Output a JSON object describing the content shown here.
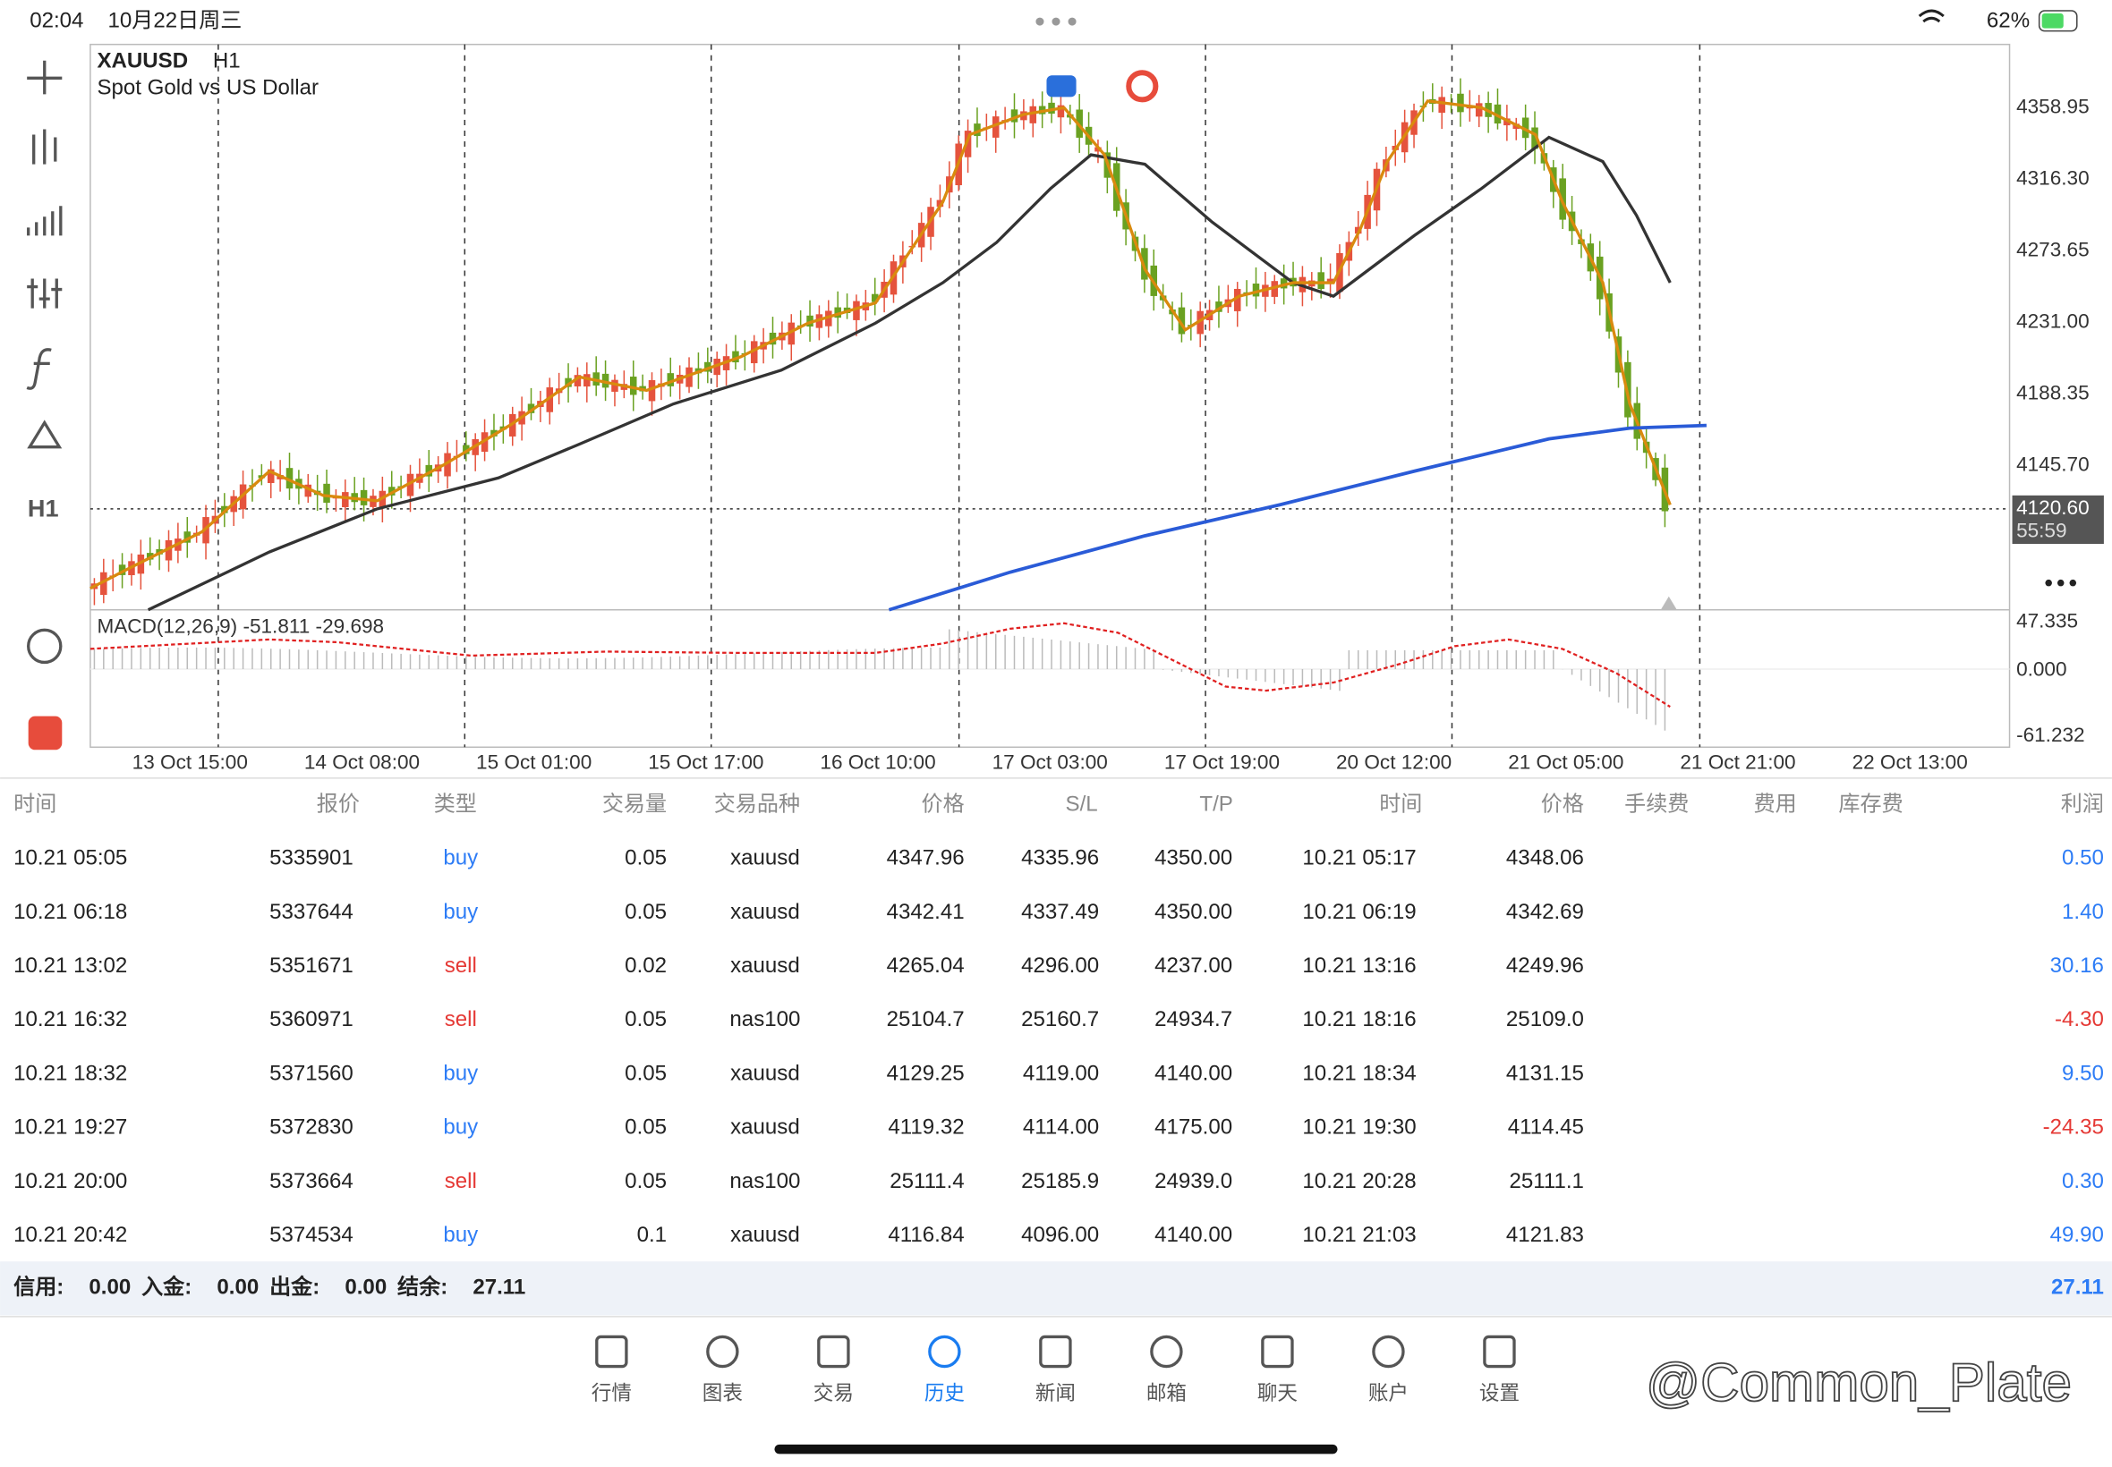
{
  "status_bar": {
    "time": "02:04",
    "date": "10月22日周三",
    "battery": "62%"
  },
  "chart": {
    "symbol": "XAUUSD",
    "timeframe": "H1",
    "description": "Spot Gold vs US Dollar",
    "price_labels": [
      "4358.95",
      "4316.30",
      "4273.65",
      "4231.00",
      "4188.35",
      "4145.70"
    ],
    "current_price": "4120.60",
    "countdown": "55:59",
    "macd_label": "MACD(12,26,9) -51.811 -29.698",
    "macd_labels": [
      "47.335",
      "0.000",
      "-61.232"
    ],
    "time_labels": [
      "13 Oct 15:00",
      "14 Oct 08:00",
      "15 Oct 01:00",
      "15 Oct 17:00",
      "16 Oct 10:00",
      "17 Oct 03:00",
      "17 Oct 19:00",
      "20 Oct 12:00",
      "21 Oct 05:00",
      "21 Oct 21:00",
      "22 Oct 13:00"
    ]
  },
  "table": {
    "headers": [
      "时间",
      "报价",
      "类型",
      "交易量",
      "交易品种",
      "价格",
      "S/L",
      "T/P",
      "时间",
      "价格",
      "手续费",
      "费用",
      "库存费",
      "利润"
    ],
    "rows": [
      [
        "10.21 05:05",
        "5335901",
        "buy",
        "0.05",
        "xauusd",
        "4347.96",
        "4335.96",
        "4350.00",
        "10.21 05:17",
        "4348.06",
        "0.50"
      ],
      [
        "10.21 06:18",
        "5337644",
        "buy",
        "0.05",
        "xauusd",
        "4342.41",
        "4337.49",
        "4350.00",
        "10.21 06:19",
        "4342.69",
        "1.40"
      ],
      [
        "10.21 13:02",
        "5351671",
        "sell",
        "0.02",
        "xauusd",
        "4265.04",
        "4296.00",
        "4237.00",
        "10.21 13:16",
        "4249.96",
        "30.16"
      ],
      [
        "10.21 16:32",
        "5360971",
        "sell",
        "0.05",
        "nas100",
        "25104.7",
        "25160.7",
        "24934.7",
        "10.21 18:16",
        "25109.0",
        "-4.30"
      ],
      [
        "10.21 18:32",
        "5371560",
        "buy",
        "0.05",
        "xauusd",
        "4129.25",
        "4119.00",
        "4140.00",
        "10.21 18:34",
        "4131.15",
        "9.50"
      ],
      [
        "10.21 19:27",
        "5372830",
        "buy",
        "0.05",
        "xauusd",
        "4119.32",
        "4114.00",
        "4175.00",
        "10.21 19:30",
        "4114.45",
        "-24.35"
      ],
      [
        "10.21 20:00",
        "5373664",
        "sell",
        "0.05",
        "nas100",
        "25111.4",
        "25185.9",
        "24939.0",
        "10.21 20:28",
        "25111.1",
        "0.30"
      ],
      [
        "10.21 20:42",
        "5374534",
        "buy",
        "0.1",
        "xauusd",
        "4116.84",
        "4096.00",
        "4140.00",
        "10.21 21:03",
        "4121.83",
        "49.90"
      ]
    ]
  },
  "summary": {
    "items": [
      {
        "label": "信用:",
        "value": "0.00"
      },
      {
        "label": "入金:",
        "value": "0.00"
      },
      {
        "label": "出金:",
        "value": "0.00"
      },
      {
        "label": "结余:",
        "value": "27.11"
      }
    ],
    "total": "27.11"
  },
  "tabs": [
    "行情",
    "图表",
    "交易",
    "历史",
    "新闻",
    "邮箱",
    "聊天",
    "账户",
    "设置"
  ],
  "watermark": "@Common_Plate"
}
